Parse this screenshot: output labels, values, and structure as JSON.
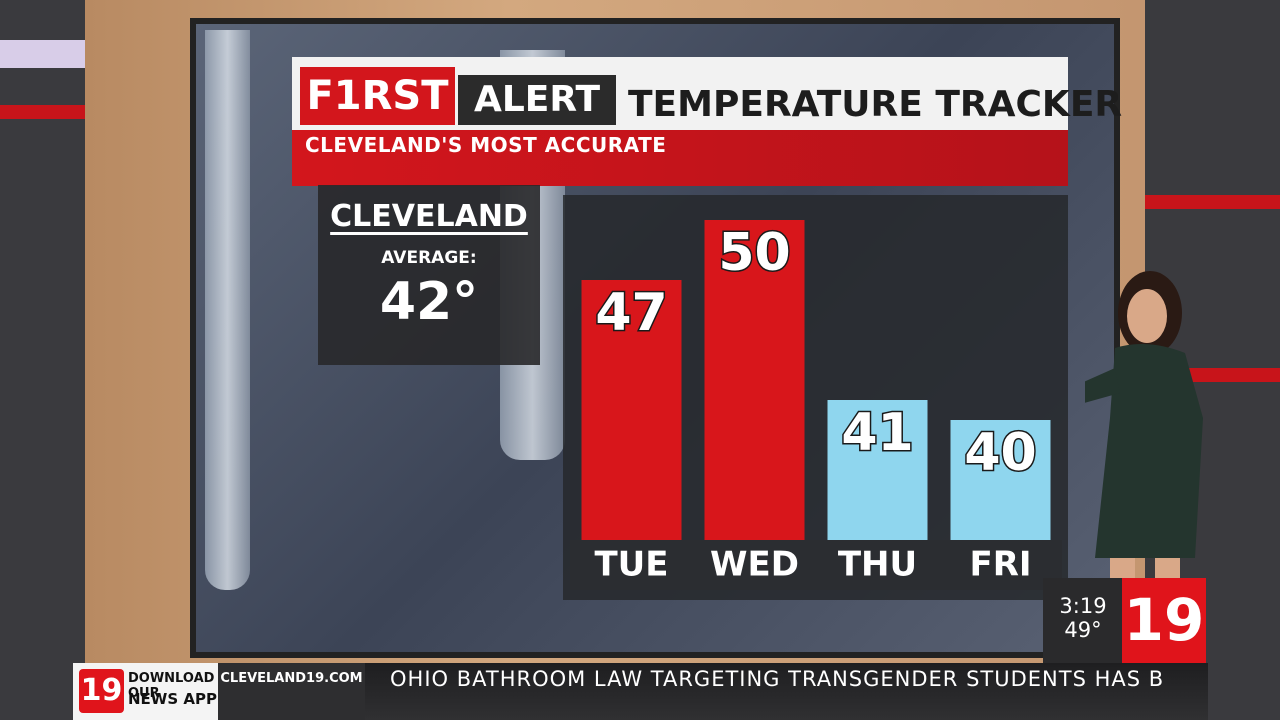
{
  "header": {
    "brand_1": "F1RST",
    "brand_2": "ALERT",
    "subtitle": "CLEVELAND'S MOST ACCURATE"
  },
  "average": {
    "city": "CLEVELAND",
    "label": "AVERAGE:",
    "value": "42°"
  },
  "chart_data": {
    "type": "bar",
    "title": "TEMPERATURE TRACKER",
    "categories": [
      "TUE",
      "WED",
      "THU",
      "FRI"
    ],
    "values": [
      47,
      50,
      41,
      40
    ],
    "colors": [
      "#d8161b",
      "#d8161b",
      "#8fd6ee",
      "#8fd6ee"
    ]
  },
  "clock": {
    "time": "3:19",
    "temperature": "49°",
    "logo": "19"
  },
  "ticker": {
    "logo": "19",
    "app_line_1": "DOWNLOAD OUR",
    "app_line_2": "NEWS APP",
    "website": "CLEVELAND19.COM",
    "headline": "OHIO BATHROOM LAW TARGETING TRANSGENDER STUDENTS HAS B"
  }
}
